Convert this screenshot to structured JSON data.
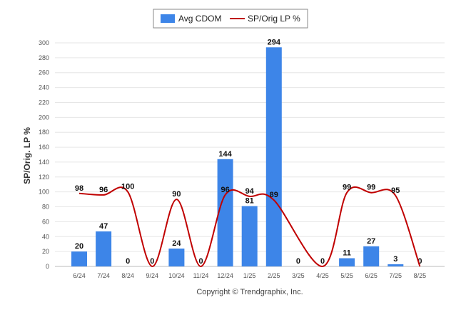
{
  "chart_data": {
    "type": "bar",
    "ylabel": "SP/Orig. LP %",
    "ylim": [
      0,
      300
    ],
    "ytick_step": 20,
    "grid": true,
    "legend_position": "top-center",
    "categories": [
      "6/24",
      "7/24",
      "8/24",
      "9/24",
      "10/24",
      "11/24",
      "12/24",
      "1/25",
      "2/25",
      "3/25",
      "4/25",
      "5/25",
      "6/25",
      "7/25",
      "8/25"
    ],
    "series": [
      {
        "name": "Avg CDOM",
        "type": "bar",
        "color": "#3d85e8",
        "values": [
          20,
          47,
          0,
          0,
          24,
          0,
          144,
          81,
          294,
          0,
          0,
          11,
          27,
          3,
          0
        ]
      },
      {
        "name": "SP/Orig LP %",
        "type": "line",
        "color": "#c00000",
        "values": [
          98,
          96,
          100,
          0,
          90,
          0,
          96,
          94,
          89,
          null,
          0,
          99,
          99,
          95,
          0
        ],
        "labels": [
          "98",
          "96",
          "100",
          "0",
          "90",
          "0",
          "96",
          "94",
          "89",
          "",
          "0",
          "99",
          "99",
          "95",
          "0"
        ]
      }
    ]
  },
  "copyright": "Copyright © Trendgraphix, Inc."
}
